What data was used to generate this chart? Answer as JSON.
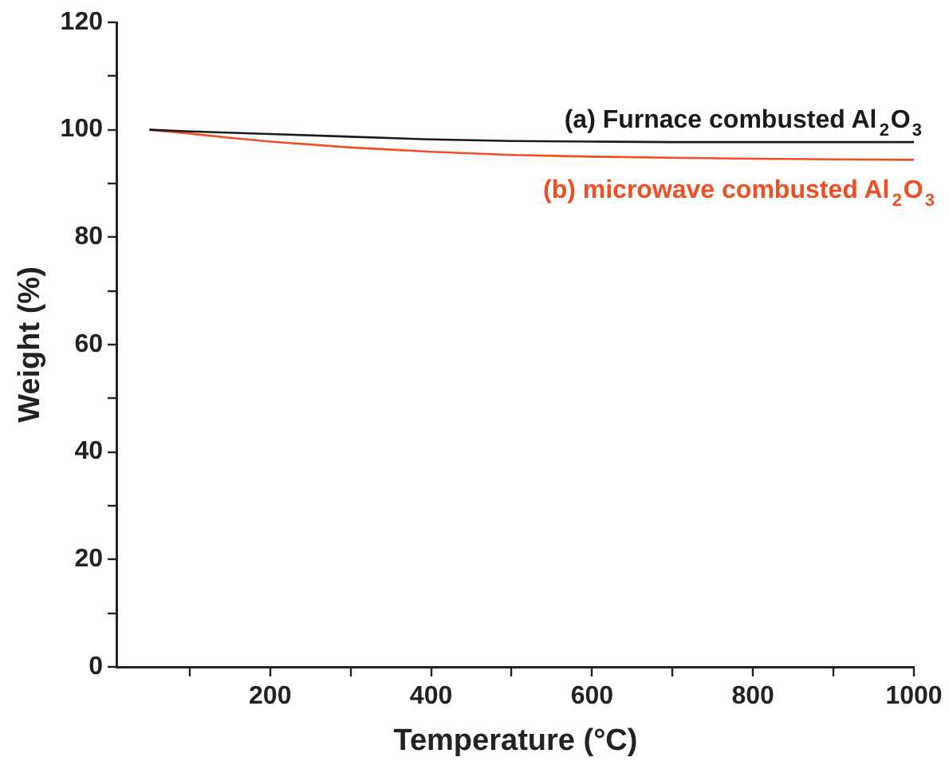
{
  "chart_data": {
    "type": "line",
    "xlabel": "Temperature (°C)",
    "ylabel": "Weight (%)",
    "xlim": [
      10,
      1000
    ],
    "xticks": [
      {
        "value": 100,
        "label": null
      },
      200,
      {
        "value": 300,
        "label": null
      },
      400,
      {
        "value": 500,
        "label": null
      },
      600,
      {
        "value": 700,
        "label": null
      },
      800,
      {
        "value": 900,
        "label": null
      },
      1000
    ],
    "ylim": [
      0,
      120
    ],
    "yticks": [
      0,
      {
        "value": 10,
        "label": null
      },
      20,
      {
        "value": 30,
        "label": null
      },
      40,
      {
        "value": 50,
        "label": null
      },
      60,
      {
        "value": 70,
        "label": null
      },
      80,
      {
        "value": 90,
        "label": null
      },
      100,
      {
        "value": 110,
        "label": null
      },
      120
    ],
    "grid": false,
    "legend": false,
    "marker": "none",
    "line_style": "solid",
    "series": [
      {
        "name": "(a) Furnace combusted Al$_{2}$O$_{3}$",
        "color": "#1a1a1a",
        "x": [
          50,
          100,
          200,
          300,
          400,
          500,
          600,
          700,
          800,
          900,
          1000
        ],
        "values": [
          100,
          99.7,
          99.2,
          98.7,
          98.2,
          97.9,
          97.8,
          97.7,
          97.7,
          97.7,
          97.7
        ]
      },
      {
        "name": "(b) microwave combusted Al$_{2}$O$_{3}$",
        "color": "#f04e23",
        "x": [
          50,
          100,
          150,
          200,
          300,
          400,
          500,
          600,
          700,
          800,
          900,
          1000
        ],
        "values": [
          100,
          99.3,
          98.5,
          97.8,
          96.7,
          95.9,
          95.3,
          95,
          94.8,
          94.6,
          94.5,
          94.4
        ]
      }
    ]
  }
}
